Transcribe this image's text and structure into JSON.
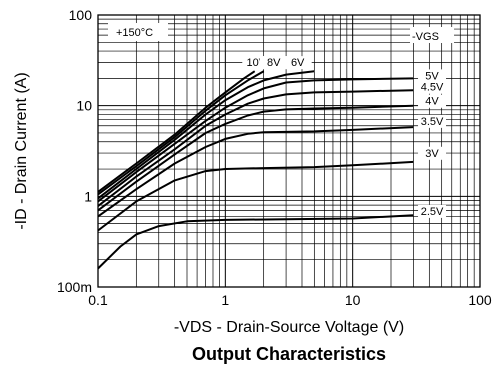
{
  "chart_data": {
    "type": "line",
    "title": "Output Characteristics",
    "xlabel": "-VDS - Drain-Source Voltage (V)",
    "ylabel": "-ID - Drain Current (A)",
    "xscale": "log",
    "yscale": "log",
    "xlim": [
      0.1,
      100
    ],
    "ylim": [
      0.1,
      100
    ],
    "x_ticks": [
      {
        "value": 0.1,
        "label": "0.1"
      },
      {
        "value": 1,
        "label": "1"
      },
      {
        "value": 10,
        "label": "10"
      },
      {
        "value": 100,
        "label": "100"
      }
    ],
    "y_ticks": [
      {
        "value": 0.1,
        "label": "100m"
      },
      {
        "value": 1,
        "label": "1"
      },
      {
        "value": 10,
        "label": "10"
      },
      {
        "value": 100,
        "label": "100"
      }
    ],
    "grid": true,
    "annotations": [
      "+150°C",
      "-VGS"
    ],
    "series": [
      {
        "name": "10V",
        "label_at": [
          1.75,
          28
        ],
        "points": [
          [
            0.1,
            1.12
          ],
          [
            0.2,
            2.3
          ],
          [
            0.4,
            4.8
          ],
          [
            0.7,
            9.5
          ],
          [
            1.0,
            14
          ],
          [
            1.4,
            20
          ],
          [
            1.7,
            24
          ]
        ]
      },
      {
        "name": "8V",
        "label_at": [
          2.4,
          28
        ],
        "points": [
          [
            0.1,
            1.05
          ],
          [
            0.2,
            2.15
          ],
          [
            0.4,
            4.5
          ],
          [
            0.7,
            8.8
          ],
          [
            1.0,
            13
          ],
          [
            1.5,
            19
          ],
          [
            2.0,
            24
          ]
        ]
      },
      {
        "name": "6V",
        "label_at": [
          3.7,
          28
        ],
        "points": [
          [
            0.1,
            0.95
          ],
          [
            0.2,
            2.0
          ],
          [
            0.4,
            4.2
          ],
          [
            0.7,
            8
          ],
          [
            1.0,
            11.5
          ],
          [
            1.5,
            16
          ],
          [
            2.0,
            19
          ],
          [
            3.0,
            22
          ],
          [
            5.0,
            24
          ]
        ]
      },
      {
        "name": "5V",
        "label_at": [
          42,
          20
        ],
        "points": [
          [
            0.1,
            0.88
          ],
          [
            0.2,
            1.85
          ],
          [
            0.4,
            3.8
          ],
          [
            0.7,
            6.8
          ],
          [
            1.0,
            9.5
          ],
          [
            1.5,
            13
          ],
          [
            2.0,
            15.5
          ],
          [
            3.0,
            18
          ],
          [
            5.0,
            19
          ],
          [
            10,
            19.5
          ],
          [
            30,
            20
          ]
        ]
      },
      {
        "name": "4.5V",
        "label_at": [
          42,
          15
        ],
        "points": [
          [
            0.1,
            0.78
          ],
          [
            0.2,
            1.65
          ],
          [
            0.4,
            3.3
          ],
          [
            0.7,
            6
          ],
          [
            1.0,
            8
          ],
          [
            1.5,
            10.5
          ],
          [
            2.0,
            12
          ],
          [
            3.0,
            13.3
          ],
          [
            5.0,
            14
          ],
          [
            10,
            14.3
          ],
          [
            30,
            14.8
          ]
        ]
      },
      {
        "name": "4V",
        "label_at": [
          42,
          10.5
        ],
        "points": [
          [
            0.1,
            0.7
          ],
          [
            0.2,
            1.45
          ],
          [
            0.4,
            2.9
          ],
          [
            0.7,
            5
          ],
          [
            1.0,
            6.3
          ],
          [
            1.5,
            7.8
          ],
          [
            2.0,
            8.6
          ],
          [
            3.0,
            9.1
          ],
          [
            5.0,
            9.3
          ],
          [
            10,
            9.5
          ],
          [
            30,
            10
          ]
        ]
      },
      {
        "name": "3.5V",
        "label_at": [
          42,
          6.3
        ],
        "points": [
          [
            0.1,
            0.6
          ],
          [
            0.2,
            1.2
          ],
          [
            0.4,
            2.3
          ],
          [
            0.7,
            3.5
          ],
          [
            1.0,
            4.3
          ],
          [
            1.5,
            4.9
          ],
          [
            2.0,
            5.1
          ],
          [
            5.0,
            5.2
          ],
          [
            10,
            5.4
          ],
          [
            30,
            5.8
          ]
        ]
      },
      {
        "name": "3V",
        "label_at": [
          42,
          2.8
        ],
        "points": [
          [
            0.1,
            0.42
          ],
          [
            0.2,
            0.88
          ],
          [
            0.4,
            1.5
          ],
          [
            0.7,
            1.9
          ],
          [
            1.0,
            2.0
          ],
          [
            2.0,
            2.05
          ],
          [
            5.0,
            2.1
          ],
          [
            10,
            2.2
          ],
          [
            30,
            2.4
          ]
        ]
      },
      {
        "name": "2.5V",
        "label_at": [
          42,
          0.64
        ],
        "points": [
          [
            0.1,
            0.16
          ],
          [
            0.15,
            0.28
          ],
          [
            0.2,
            0.38
          ],
          [
            0.3,
            0.47
          ],
          [
            0.5,
            0.53
          ],
          [
            1.0,
            0.55
          ],
          [
            3.0,
            0.56
          ],
          [
            10,
            0.57
          ],
          [
            30,
            0.62
          ]
        ]
      }
    ]
  }
}
